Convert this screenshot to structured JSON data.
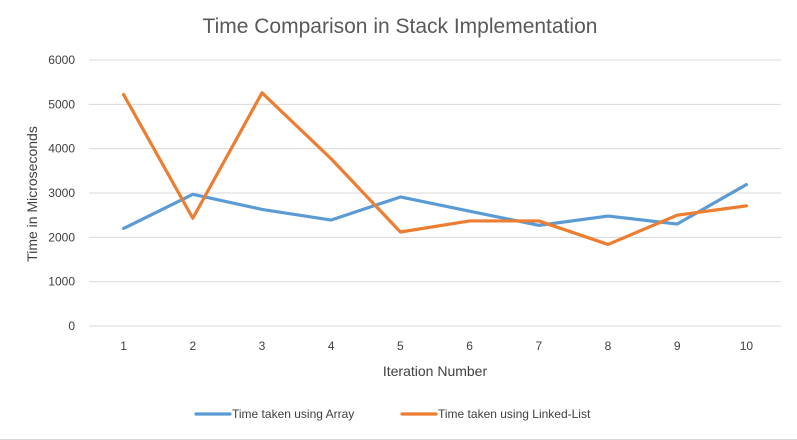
{
  "chart_data": {
    "type": "line",
    "title": "Time Comparison in Stack Implementation",
    "xlabel": "Iteration Number",
    "ylabel": "Time in Microseconds",
    "categories": [
      "1",
      "2",
      "3",
      "4",
      "5",
      "6",
      "7",
      "8",
      "9",
      "10"
    ],
    "ylim": [
      0,
      6000
    ],
    "yticks": [
      "0",
      "1000",
      "2000",
      "3000",
      "4000",
      "5000",
      "6000"
    ],
    "grid": true,
    "legend_position": "bottom",
    "series": [
      {
        "name": "Time taken using Array",
        "color": "#5b9bd5",
        "values": [
          2200,
          2970,
          2630,
          2390,
          2910,
          2590,
          2270,
          2480,
          2300,
          3190
        ]
      },
      {
        "name": "Time taken using Linked-List",
        "color": "#ed7d31",
        "values": [
          5220,
          2430,
          5260,
          3770,
          2120,
          2370,
          2370,
          1840,
          2500,
          2710
        ]
      }
    ]
  }
}
